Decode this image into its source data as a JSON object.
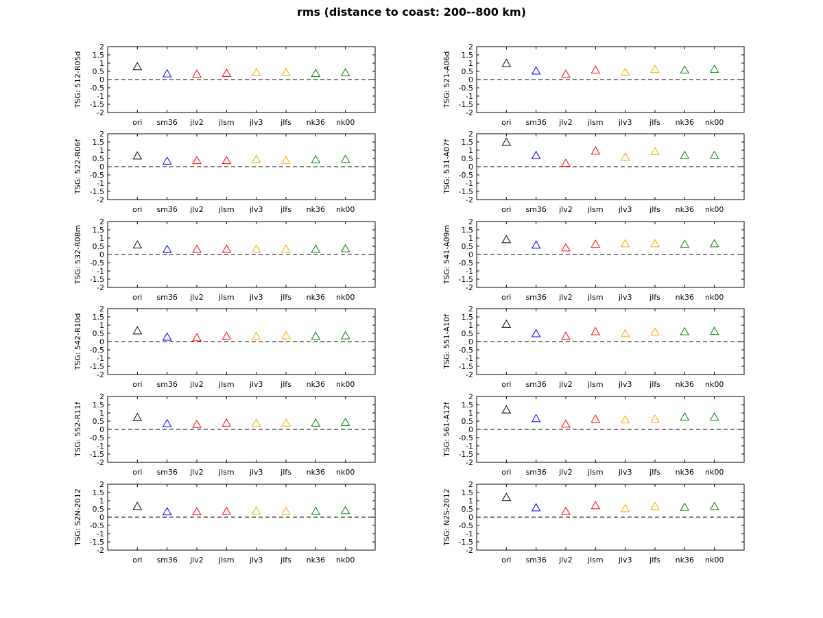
{
  "figure": {
    "title": "rms (distance to coast: 200--800 km)"
  },
  "chart_data": [
    {
      "type": "scatter",
      "ylabel": "TSG: 512-R05d",
      "ylim": [
        -2,
        2
      ],
      "yticks": [
        "2",
        "1.5",
        "1",
        "0.5",
        "0",
        "-0.5",
        "-1",
        "-1.5",
        "-2"
      ],
      "reference_line": 0,
      "categories": [
        "ori",
        "sm36",
        "jlv2",
        "jlsm",
        "jlv3",
        "jlfs",
        "nk36",
        "nk00"
      ],
      "colors": [
        "#000000",
        "#0000ff",
        "#ff0000",
        "#ff0000",
        "#ffa500",
        "#ffa500",
        "#008000",
        "#008000"
      ],
      "values": [
        0.78,
        0.35,
        0.33,
        0.38,
        0.42,
        0.42,
        0.37,
        0.41
      ]
    },
    {
      "type": "scatter",
      "ylabel": "TSG: 521-A06d",
      "ylim": [
        -2,
        2
      ],
      "yticks": [
        "2",
        "1.5",
        "1",
        "0.5",
        "0",
        "-0.5",
        "-1",
        "-1.5",
        "-2"
      ],
      "reference_line": 0,
      "categories": [
        "ori",
        "sm36",
        "jlv2",
        "jlsm",
        "jlv3",
        "jlfs",
        "nk36",
        "nk00"
      ],
      "colors": [
        "#000000",
        "#0000ff",
        "#ff0000",
        "#ff0000",
        "#ffa500",
        "#ffa500",
        "#008000",
        "#008000"
      ],
      "values": [
        0.98,
        0.52,
        0.33,
        0.58,
        0.43,
        0.62,
        0.58,
        0.62
      ]
    },
    {
      "type": "scatter",
      "ylabel": "TSG: 522-R06f",
      "ylim": [
        -2,
        2
      ],
      "yticks": [
        "2",
        "1.5",
        "1",
        "0.5",
        "0",
        "-0.5",
        "-1",
        "-1.5",
        "-2"
      ],
      "reference_line": 0,
      "categories": [
        "ori",
        "sm36",
        "jlv2",
        "jlsm",
        "jlv3",
        "jlfs",
        "nk36",
        "nk00"
      ],
      "colors": [
        "#000000",
        "#0000ff",
        "#ff0000",
        "#ff0000",
        "#ffa500",
        "#ffa500",
        "#008000",
        "#008000"
      ],
      "values": [
        0.65,
        0.33,
        0.37,
        0.37,
        0.45,
        0.37,
        0.42,
        0.45
      ]
    },
    {
      "type": "scatter",
      "ylabel": "TSG: 531-A07f",
      "ylim": [
        -2,
        2
      ],
      "yticks": [
        "2",
        "1.5",
        "1",
        "0.5",
        "0",
        "-0.5",
        "-1",
        "-1.5",
        "-2"
      ],
      "reference_line": 0,
      "categories": [
        "ori",
        "sm36",
        "jlv2",
        "jlsm",
        "jlv3",
        "jlfs",
        "nk36",
        "nk00"
      ],
      "colors": [
        "#000000",
        "#0000ff",
        "#ff0000",
        "#ff0000",
        "#ffa500",
        "#ffa500",
        "#008000",
        "#008000"
      ],
      "values": [
        1.48,
        0.68,
        0.21,
        0.95,
        0.58,
        0.92,
        0.68,
        0.68
      ]
    },
    {
      "type": "scatter",
      "ylabel": "TSG: 532-R08m",
      "ylim": [
        -2,
        2
      ],
      "yticks": [
        "2",
        "1.5",
        "1",
        "0.5",
        "0",
        "-0.5",
        "-1",
        "-1.5",
        "-2"
      ],
      "reference_line": 0,
      "categories": [
        "ori",
        "sm36",
        "jlv2",
        "jlsm",
        "jlv3",
        "jlfs",
        "nk36",
        "nk00"
      ],
      "colors": [
        "#000000",
        "#0000ff",
        "#ff0000",
        "#ff0000",
        "#ffa500",
        "#ffa500",
        "#008000",
        "#008000"
      ],
      "values": [
        0.58,
        0.3,
        0.32,
        0.32,
        0.33,
        0.33,
        0.32,
        0.35
      ]
    },
    {
      "type": "scatter",
      "ylabel": "TSG: 541-A09m",
      "ylim": [
        -2,
        2
      ],
      "yticks": [
        "2",
        "1.5",
        "1",
        "0.5",
        "0",
        "-0.5",
        "-1",
        "-1.5",
        "-2"
      ],
      "reference_line": 0,
      "categories": [
        "ori",
        "sm36",
        "jlv2",
        "jlsm",
        "jlv3",
        "jlfs",
        "nk36",
        "nk00"
      ],
      "colors": [
        "#000000",
        "#0000ff",
        "#ff0000",
        "#ff0000",
        "#ffa500",
        "#ffa500",
        "#008000",
        "#008000"
      ],
      "values": [
        0.9,
        0.57,
        0.4,
        0.62,
        0.65,
        0.65,
        0.62,
        0.65
      ]
    },
    {
      "type": "scatter",
      "ylabel": "TSG: 542-R10d",
      "ylim": [
        -2,
        2
      ],
      "yticks": [
        "2",
        "1.5",
        "1",
        "0.5",
        "0",
        "-0.5",
        "-1",
        "-1.5",
        "-2"
      ],
      "reference_line": 0,
      "categories": [
        "ori",
        "sm36",
        "jlv2",
        "jlsm",
        "jlv3",
        "jlfs",
        "nk36",
        "nk00"
      ],
      "colors": [
        "#000000",
        "#0000ff",
        "#ff0000",
        "#ff0000",
        "#ffa500",
        "#ffa500",
        "#008000",
        "#008000"
      ],
      "values": [
        0.65,
        0.27,
        0.23,
        0.32,
        0.32,
        0.35,
        0.32,
        0.35
      ]
    },
    {
      "type": "scatter",
      "ylabel": "TSG: 551-A10f",
      "ylim": [
        -2,
        2
      ],
      "yticks": [
        "2",
        "1.5",
        "1",
        "0.5",
        "0",
        "-0.5",
        "-1",
        "-1.5",
        "-2"
      ],
      "reference_line": 0,
      "categories": [
        "ori",
        "sm36",
        "jlv2",
        "jlsm",
        "jlv3",
        "jlfs",
        "nk36",
        "nk00"
      ],
      "colors": [
        "#000000",
        "#0000ff",
        "#ff0000",
        "#ff0000",
        "#ffa500",
        "#ffa500",
        "#008000",
        "#008000"
      ],
      "values": [
        1.05,
        0.48,
        0.32,
        0.6,
        0.48,
        0.58,
        0.6,
        0.62
      ]
    },
    {
      "type": "scatter",
      "ylabel": "TSG: 552-R11f",
      "ylim": [
        -2,
        2
      ],
      "yticks": [
        "2",
        "1.5",
        "1",
        "0.5",
        "0",
        "-0.5",
        "-1",
        "-1.5",
        "-2"
      ],
      "reference_line": 0,
      "categories": [
        "ori",
        "sm36",
        "jlv2",
        "jlsm",
        "jlv3",
        "jlfs",
        "nk36",
        "nk00"
      ],
      "colors": [
        "#000000",
        "#0000ff",
        "#ff0000",
        "#ff0000",
        "#ffa500",
        "#ffa500",
        "#008000",
        "#008000"
      ],
      "values": [
        0.72,
        0.35,
        0.3,
        0.38,
        0.37,
        0.38,
        0.38,
        0.42
      ]
    },
    {
      "type": "scatter",
      "ylabel": "TSG: 561-A12f",
      "ylim": [
        -2,
        2
      ],
      "yticks": [
        "2",
        "1.5",
        "1",
        "0.5",
        "0",
        "-0.5",
        "-1",
        "-1.5",
        "-2"
      ],
      "reference_line": 0,
      "categories": [
        "ori",
        "sm36",
        "jlv2",
        "jlsm",
        "jlv3",
        "jlfs",
        "nk36",
        "nk00"
      ],
      "colors": [
        "#000000",
        "#0000ff",
        "#ff0000",
        "#ff0000",
        "#ffa500",
        "#ffa500",
        "#008000",
        "#008000"
      ],
      "values": [
        1.18,
        0.65,
        0.32,
        0.62,
        0.58,
        0.62,
        0.75,
        0.75
      ]
    },
    {
      "type": "scatter",
      "ylabel": "TSG: S2N-2012",
      "ylim": [
        -2,
        2
      ],
      "yticks": [
        "2",
        "1.5",
        "1",
        "0.5",
        "0",
        "-0.5",
        "-1",
        "-1.5",
        "-2"
      ],
      "reference_line": 0,
      "categories": [
        "ori",
        "sm36",
        "jlv2",
        "jlsm",
        "jlv3",
        "jlfs",
        "nk36",
        "nk00"
      ],
      "colors": [
        "#000000",
        "#0000ff",
        "#ff0000",
        "#ff0000",
        "#ffa500",
        "#ffa500",
        "#008000",
        "#008000"
      ],
      "values": [
        0.65,
        0.33,
        0.33,
        0.35,
        0.38,
        0.35,
        0.35,
        0.4
      ]
    },
    {
      "type": "scatter",
      "ylabel": "TSG: N2S-2012",
      "ylim": [
        -2,
        2
      ],
      "yticks": [
        "2",
        "1.5",
        "1",
        "0.5",
        "0",
        "-0.5",
        "-1",
        "-1.5",
        "-2"
      ],
      "reference_line": 0,
      "categories": [
        "ori",
        "sm36",
        "jlv2",
        "jlsm",
        "jlv3",
        "jlfs",
        "nk36",
        "nk00"
      ],
      "colors": [
        "#000000",
        "#0000ff",
        "#ff0000",
        "#ff0000",
        "#ffa500",
        "#ffa500",
        "#008000",
        "#008000"
      ],
      "values": [
        1.2,
        0.57,
        0.35,
        0.7,
        0.52,
        0.65,
        0.6,
        0.65
      ]
    }
  ]
}
